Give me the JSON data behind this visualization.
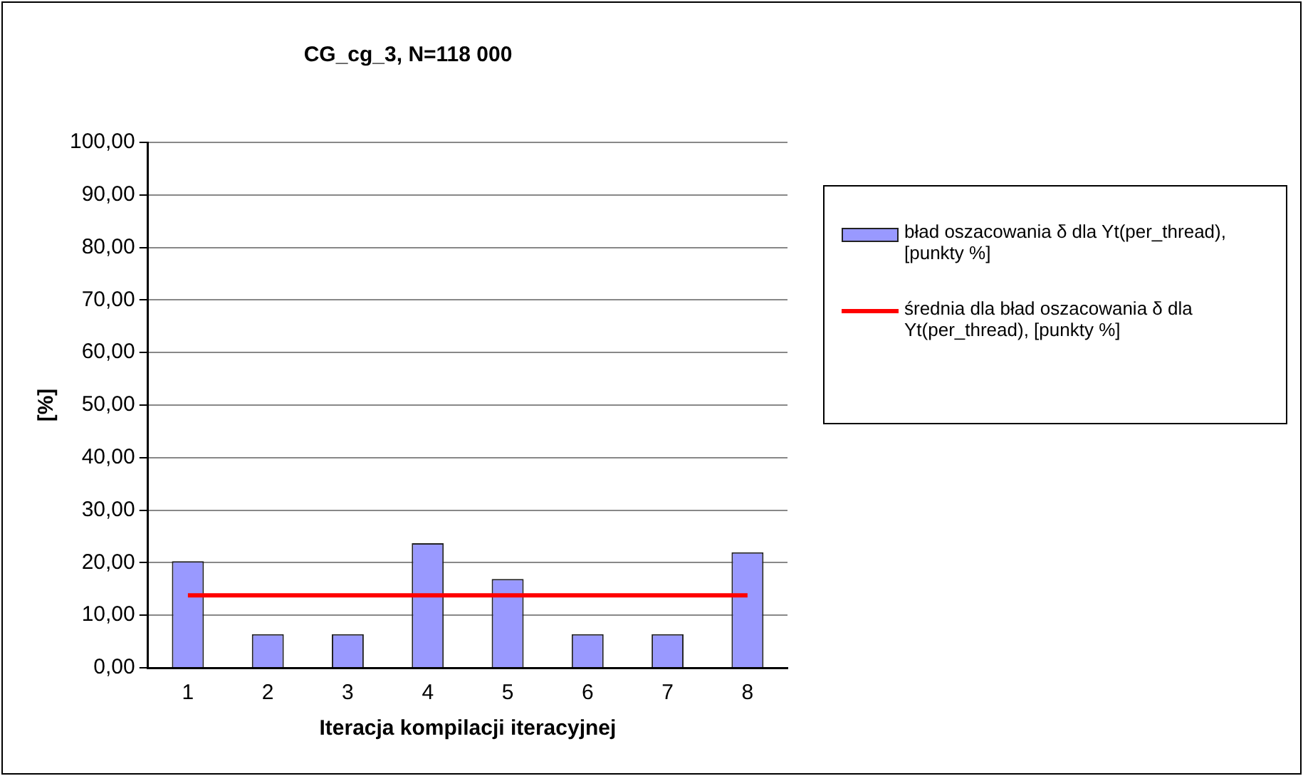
{
  "chart_data": {
    "type": "bar",
    "title": "CG_cg_3, N=118 000",
    "xlabel": "Iteracja kompilacji iteracyjnej",
    "ylabel": "[%]",
    "categories": [
      "1",
      "2",
      "3",
      "4",
      "5",
      "6",
      "7",
      "8"
    ],
    "series": [
      {
        "name": "bład oszacowania δ dla Yt(per_thread), [punkty %]",
        "color": "#9999ff",
        "values": [
          20.3,
          6.4,
          6.4,
          23.7,
          16.9,
          6.4,
          6.4,
          22.0
        ]
      },
      {
        "type": "line",
        "name": "średnia dla bład oszacowania δ dla Yt(per_thread), [punkty %]",
        "color": "#ff0000",
        "values": [
          13.8,
          13.8,
          13.8,
          13.8,
          13.8,
          13.8,
          13.8,
          13.8
        ]
      }
    ],
    "ylim": [
      0,
      100
    ],
    "yticks": [
      {
        "value": 0,
        "label": "0,00"
      },
      {
        "value": 10,
        "label": "10,00"
      },
      {
        "value": 20,
        "label": "20,00"
      },
      {
        "value": 30,
        "label": "30,00"
      },
      {
        "value": 40,
        "label": "40,00"
      },
      {
        "value": 50,
        "label": "50,00"
      },
      {
        "value": 60,
        "label": "60,00"
      },
      {
        "value": 70,
        "label": "70,00"
      },
      {
        "value": 80,
        "label": "80,00"
      },
      {
        "value": 90,
        "label": "90,00"
      },
      {
        "value": 100,
        "label": "100,00"
      }
    ],
    "grid": "y",
    "legend": "right",
    "marker": "none"
  }
}
